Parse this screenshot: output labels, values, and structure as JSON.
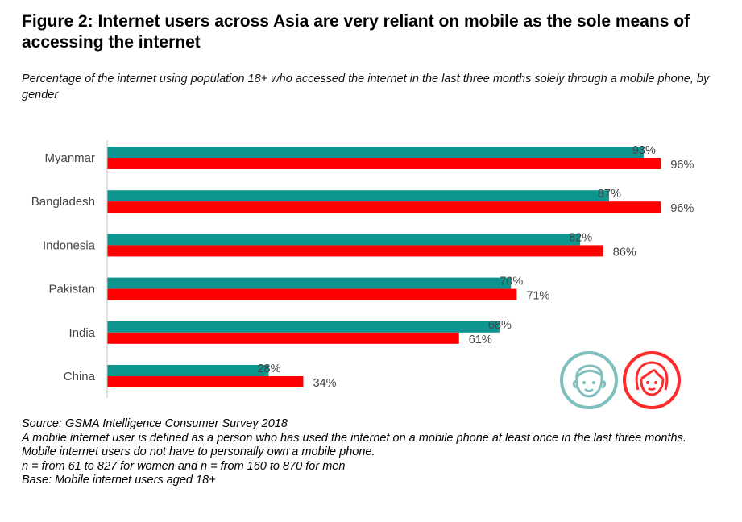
{
  "title": "Figure 2: Internet users across Asia are very reliant on mobile as the sole means of accessing the internet",
  "subtitle": "Percentage of the internet using population 18+ who accessed the internet in the last three months solely through a mobile phone, by gender",
  "chart_data": {
    "type": "bar",
    "orientation": "horizontal",
    "categories": [
      "Myanmar",
      "Bangladesh",
      "Indonesia",
      "Pakistan",
      "India",
      "China"
    ],
    "series": [
      {
        "color": "#0e9590",
        "values": [
          93,
          87,
          82,
          70,
          68,
          28
        ],
        "labels": [
          "93%",
          "87%",
          "82%",
          "70%",
          "68%",
          "28%"
        ]
      },
      {
        "color": "#ff0000",
        "values": [
          96,
          96,
          86,
          71,
          61,
          34
        ],
        "labels": [
          "96%",
          "96%",
          "86%",
          "71%",
          "61%",
          "34%"
        ]
      }
    ],
    "xlim": [
      0,
      100
    ],
    "grid": false
  },
  "icons": {
    "men": {
      "name": "man-face-icon",
      "color": "#7fbfbd"
    },
    "women": {
      "name": "woman-face-icon",
      "color": "#ff2a2a"
    }
  },
  "footnotes": [
    "Source: GSMA Intelligence Consumer Survey 2018",
    "A mobile internet user is defined as a person who has used the internet on a mobile phone at least once in the last three months.",
    "Mobile internet users do not have to personally own a mobile phone.",
    "n = from 61 to 827 for women and n = from 160 to 870 for men",
    "Base: Mobile internet users aged 18+"
  ]
}
